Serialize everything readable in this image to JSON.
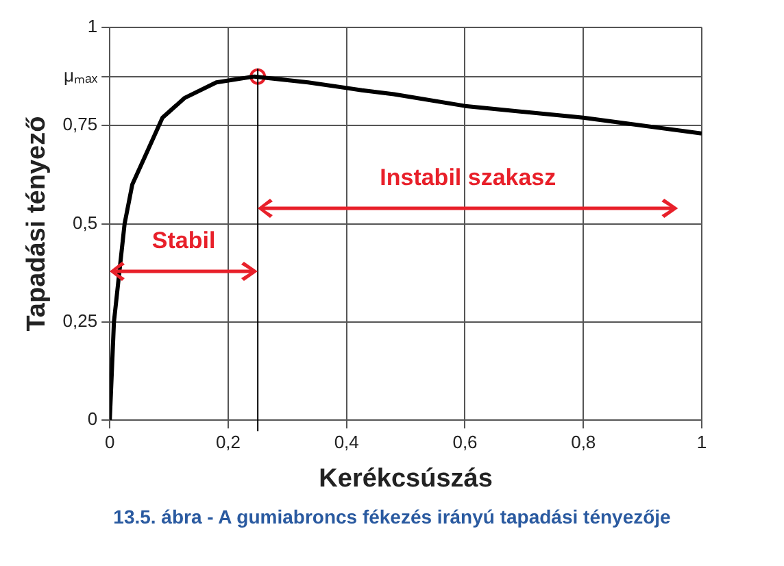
{
  "chart_data": {
    "type": "line",
    "xlabel": "Kerékcsúszás",
    "ylabel": "Tapadási tényező",
    "x": [
      0,
      0.007,
      0.025,
      0.038,
      0.062,
      0.089,
      0.126,
      0.18,
      0.244,
      0.335,
      0.426,
      0.48,
      0.6,
      0.8,
      1
    ],
    "series": [
      {
        "color": "#000000",
        "values": [
          0,
          0.25,
          0.5,
          0.6,
          0.68,
          0.77,
          0.82,
          0.86,
          0.875,
          0.86,
          0.84,
          0.83,
          0.8,
          0.77,
          0.73
        ]
      },
      {
        "type": "scatter",
        "color": "#e8202a",
        "marker": "circle",
        "x": [
          0.25
        ],
        "values": [
          0.875
        ]
      }
    ],
    "xlim": [
      0,
      1
    ],
    "ylim": [
      0,
      1
    ],
    "xticks": [
      0,
      {
        "value": 0.2,
        "label": "0,2"
      },
      {
        "value": 0.4,
        "label": "0,4"
      },
      {
        "value": 0.6,
        "label": "0,6"
      },
      {
        "value": 0.8,
        "label": "0,8"
      },
      1
    ],
    "yticks": [
      0,
      {
        "value": 0.25,
        "label": "0,25"
      },
      {
        "value": 0.5,
        "label": "0,5"
      },
      {
        "value": 0.75,
        "label": "0,75"
      },
      {
        "value": 0.875,
        "label": "μₘₐₓ"
      },
      1
    ],
    "grid": true,
    "legend": false,
    "marker": "none",
    "ref_lines": [
      {
        "axis": "x",
        "value": 0.25,
        "color": "#000000"
      }
    ],
    "annotations": [
      "Stabil",
      "Instabil szakasz",
      "13.5. ábra - A gumiabroncs fékezés irányú tapadási tényezője"
    ]
  }
}
